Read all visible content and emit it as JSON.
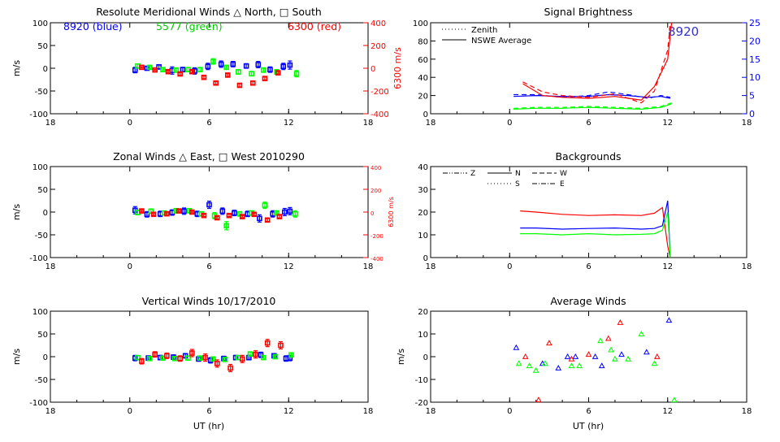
{
  "figure": {
    "panel_titles": {
      "meridional": "Resolute Meridional Winds △ North, □ South",
      "zonal": "Zonal Winds △ East, □ West 2010290",
      "vertical": "Vertical Winds 10/17/2010",
      "brightness": "Signal Brightness",
      "backgrounds": "Backgrounds",
      "average": "Average Winds"
    },
    "wavelength_labels": {
      "blue": "8920 (blue)",
      "green": "5577 (green)",
      "red": "6300 (red)"
    },
    "xlabel": "UT (hr)"
  },
  "chart_data": [
    {
      "id": "meridional",
      "type": "scatter",
      "title": "Resolute Meridional Winds △ North, □ South",
      "ylabel": "m/s",
      "ylabel_right": "6300 m/s",
      "x_ticks": [
        "18",
        "0",
        "6",
        "12",
        "18"
      ],
      "ylim": [
        -100,
        100
      ],
      "y_ticks": [
        -100,
        -50,
        0,
        50,
        100
      ],
      "ylim_right": [
        -400,
        400
      ],
      "y_ticks_right": [
        -400,
        -200,
        0,
        200,
        400
      ],
      "series": [
        {
          "color": "#0000ff",
          "x": [
            0.4,
            1.3,
            2.2,
            3.2,
            4.0,
            4.9,
            5.9,
            6.9,
            7.8,
            8.8,
            9.7,
            10.6,
            11.6,
            12.1
          ],
          "y": [
            -4,
            0,
            3,
            -5,
            -3,
            -6,
            4,
            9,
            9,
            5,
            8,
            -3,
            4,
            7
          ],
          "err": [
            6,
            4,
            5,
            8,
            5,
            7,
            7,
            7,
            6,
            5,
            7,
            6,
            7,
            9
          ]
        },
        {
          "color": "#00ff00",
          "x": [
            0.6,
            1.5,
            2.5,
            3.5,
            4.4,
            5.3,
            6.3,
            7.3,
            8.2,
            9.2,
            10.1,
            11.1,
            12.6
          ],
          "y": [
            5,
            2,
            -3,
            -4,
            -3,
            -3,
            15,
            2,
            -8,
            -12,
            -4,
            -8,
            -12
          ],
          "err": [
            4,
            3,
            4,
            5,
            4,
            4,
            6,
            4,
            5,
            5,
            5,
            5,
            7
          ]
        },
        {
          "color": "#ff0000",
          "x": [
            0.9,
            1.9,
            2.9,
            3.8,
            4.7,
            5.6,
            6.5,
            7.4,
            8.3,
            9.3,
            10.2,
            11.2
          ],
          "y": [
            8,
            -15,
            -30,
            -50,
            -30,
            -80,
            -130,
            -60,
            -150,
            -130,
            -90,
            -40
          ],
          "err": [
            6,
            6,
            8,
            10,
            10,
            12,
            12,
            12,
            14,
            14,
            12,
            12
          ]
        }
      ]
    },
    {
      "id": "zonal",
      "type": "scatter",
      "title": "Zonal Winds △ East, □ West 2010290",
      "ylabel": "m/s",
      "ylabel_right": "6300 m/s",
      "x_ticks": [
        "18",
        "0",
        "6",
        "12",
        "18"
      ],
      "ylim": [
        -100,
        100
      ],
      "y_ticks": [
        -100,
        -50,
        0,
        50,
        100
      ],
      "ylim_right": [
        -400,
        400
      ],
      "y_ticks_right": [
        -400,
        -200,
        0,
        200,
        400
      ],
      "series": [
        {
          "color": "#0000ff",
          "x": [
            0.4,
            1.3,
            2.3,
            3.2,
            4.1,
            5.1,
            6.0,
            7.0,
            7.9,
            8.9,
            9.8,
            10.8,
            11.7,
            12.1
          ],
          "y": [
            4,
            -5,
            -4,
            -1,
            2,
            -4,
            16,
            2,
            -2,
            -4,
            -14,
            -4,
            0,
            2
          ],
          "err": [
            8,
            6,
            6,
            6,
            7,
            6,
            8,
            7,
            6,
            6,
            8,
            7,
            8,
            8
          ]
        },
        {
          "color": "#00ff00",
          "x": [
            0.6,
            1.6,
            2.6,
            3.5,
            4.5,
            5.4,
            6.4,
            7.3,
            8.3,
            9.2,
            10.2,
            11.1,
            12.5
          ],
          "y": [
            -1,
            2,
            -2,
            3,
            3,
            -4,
            -8,
            -30,
            -4,
            -2,
            15,
            -2,
            -4
          ],
          "err": [
            5,
            5,
            4,
            5,
            5,
            5,
            7,
            9,
            5,
            5,
            7,
            5,
            7
          ]
        },
        {
          "color": "#ff0000",
          "x": [
            0.9,
            1.8,
            2.8,
            3.7,
            4.7,
            5.6,
            6.6,
            7.5,
            8.5,
            9.4,
            10.4,
            11.3
          ],
          "y": [
            10,
            -20,
            -15,
            10,
            0,
            -30,
            -50,
            -30,
            -40,
            -20,
            -70,
            -40
          ],
          "err": [
            8,
            8,
            8,
            8,
            8,
            10,
            10,
            10,
            10,
            10,
            12,
            12
          ]
        }
      ]
    },
    {
      "id": "vertical",
      "type": "scatter",
      "title": "Vertical Winds 10/17/2010",
      "ylabel": "m/s",
      "xlabel": "UT (hr)",
      "x_ticks": [
        "18",
        "0",
        "6",
        "12",
        "18"
      ],
      "ylim": [
        -100,
        100
      ],
      "y_ticks": [
        -100,
        -50,
        0,
        50,
        100
      ],
      "series": [
        {
          "color": "#0000ff",
          "x": [
            0.4,
            1.4,
            2.3,
            3.3,
            4.2,
            5.2,
            6.1,
            7.1,
            8.0,
            9.0,
            9.9,
            10.9,
            11.8,
            12.1
          ],
          "y": [
            -3,
            -3,
            -2,
            -1,
            2,
            -5,
            -8,
            -4,
            -2,
            -2,
            4,
            2,
            -4,
            -3
          ],
          "err": [
            6,
            5,
            5,
            5,
            5,
            5,
            6,
            5,
            5,
            5,
            6,
            5,
            6,
            6
          ]
        },
        {
          "color": "#00ff00",
          "x": [
            0.6,
            1.5,
            2.5,
            3.4,
            4.4,
            5.3,
            6.3,
            7.2,
            8.2,
            9.1,
            10.1,
            11.0,
            12.2
          ],
          "y": [
            -2,
            -4,
            -3,
            -4,
            -3,
            -3,
            -5,
            -6,
            -2,
            6,
            -2,
            0,
            4
          ],
          "err": [
            4,
            4,
            4,
            4,
            4,
            4,
            4,
            4,
            4,
            4,
            4,
            4,
            4
          ]
        },
        {
          "color": "#ff0000",
          "x": [
            0.9,
            1.9,
            2.8,
            3.8,
            4.7,
            5.7,
            6.6,
            7.6,
            8.5,
            9.5,
            10.4,
            11.4
          ],
          "y": [
            -10,
            5,
            2,
            -4,
            8,
            -2,
            -15,
            -25,
            -5,
            5,
            30,
            25
          ],
          "err": [
            6,
            6,
            6,
            6,
            8,
            8,
            8,
            8,
            8,
            8,
            8,
            8
          ]
        }
      ]
    },
    {
      "id": "brightness",
      "type": "line",
      "title": "Signal Brightness",
      "x_ticks": [
        "18",
        "0",
        "6",
        "12",
        "18"
      ],
      "ylim": [
        0,
        100
      ],
      "y_ticks": [
        0,
        20,
        40,
        60,
        80,
        100
      ],
      "ylim_right": [
        0,
        25
      ],
      "y_ticks_right": [
        0,
        5,
        10,
        15,
        20,
        25
      ],
      "legend": [
        {
          "style": "dotted",
          "label": "Zenith"
        },
        {
          "style": "solid",
          "label": "NSWE Average"
        }
      ],
      "annotation": "8920",
      "series": [
        {
          "color": "#0000ff",
          "style": "solid",
          "x": [
            0.3,
            2,
            4,
            6,
            7.5,
            9,
            10.5,
            11.5,
            12.2
          ],
          "y": [
            19,
            20,
            19,
            19,
            21,
            20,
            18,
            19,
            17
          ]
        },
        {
          "color": "#0000ff",
          "style": "dashed",
          "x": [
            0.3,
            2,
            4,
            6,
            7.5,
            9,
            10.5,
            11.5,
            12.2
          ],
          "y": [
            21,
            21,
            18,
            20,
            24,
            21,
            17,
            20,
            18
          ]
        },
        {
          "color": "#00ff00",
          "style": "solid",
          "x": [
            0.3,
            2,
            4,
            6,
            8,
            10,
            11.5,
            12.3
          ],
          "y": [
            5,
            6,
            6,
            7,
            6,
            5,
            7,
            11
          ]
        },
        {
          "color": "#00ff00",
          "style": "dashed",
          "x": [
            0.3,
            2,
            4,
            6,
            8,
            10,
            11.5,
            12.3
          ],
          "y": [
            6,
            7,
            7,
            8,
            7,
            6,
            8,
            12
          ]
        },
        {
          "color": "#ff0000",
          "style": "solid",
          "x": [
            1,
            2.5,
            4,
            6,
            8,
            10,
            11,
            12,
            12.3
          ],
          "y": [
            33,
            20,
            18,
            17,
            19,
            15,
            30,
            60,
            100
          ]
        },
        {
          "color": "#ff0000",
          "style": "dashed",
          "x": [
            1,
            2.5,
            4,
            6,
            8,
            10,
            11,
            12,
            12.2
          ],
          "y": [
            35,
            24,
            20,
            18,
            22,
            12,
            25,
            70,
            100
          ]
        }
      ]
    },
    {
      "id": "backgrounds",
      "type": "line",
      "title": "Backgrounds",
      "x_ticks": [
        "18",
        "0",
        "6",
        "12",
        "18"
      ],
      "ylim": [
        0,
        40
      ],
      "y_ticks": [
        0,
        10,
        20,
        30,
        40
      ],
      "legend": [
        {
          "style": "dashdotdot",
          "label": "Z"
        },
        {
          "style": "solid",
          "label": "N"
        },
        {
          "style": "dashed",
          "label": "W"
        },
        {
          "style": "dotted",
          "label": "S"
        },
        {
          "style": "dashdot",
          "label": "E"
        }
      ],
      "series": [
        {
          "color": "#ff0000",
          "x": [
            0.8,
            2,
            4,
            6,
            8,
            10,
            11,
            11.6,
            12,
            12.2
          ],
          "y": [
            20.5,
            20,
            19,
            18.5,
            18.8,
            18.5,
            19.5,
            22,
            5,
            0
          ]
        },
        {
          "color": "#0000ff",
          "x": [
            0.8,
            2,
            4,
            6,
            8,
            10,
            11,
            11.6,
            12,
            12.2
          ],
          "y": [
            13,
            13,
            12.5,
            12.8,
            13,
            12.5,
            12.8,
            14,
            25,
            0
          ]
        },
        {
          "color": "#00ff00",
          "x": [
            0.8,
            2,
            4,
            6,
            8,
            10,
            11,
            11.6,
            12,
            12.2
          ],
          "y": [
            10.5,
            10.5,
            10,
            10.5,
            10,
            10.2,
            10.5,
            12,
            20,
            0
          ]
        }
      ]
    },
    {
      "id": "average",
      "type": "scatter",
      "title": "Average Winds",
      "ylabel": "m/s",
      "xlabel": "UT (hr)",
      "x_ticks": [
        "18",
        "0",
        "6",
        "12",
        "18"
      ],
      "ylim": [
        -20,
        20
      ],
      "y_ticks": [
        -20,
        -10,
        0,
        10,
        20
      ],
      "series": [
        {
          "color": "#0000ff",
          "marker": "triangle",
          "x": [
            0.5,
            2.5,
            3.7,
            4.4,
            5.0,
            6.5,
            7.0,
            8.5,
            10.4,
            12.1
          ],
          "y": [
            4,
            -3,
            -5,
            0,
            0,
            0,
            -4,
            1,
            2,
            16
          ]
        },
        {
          "color": "#00ff00",
          "marker": "triangle",
          "x": [
            0.7,
            1.5,
            2.0,
            2.7,
            4.7,
            5.3,
            6.9,
            7.7,
            8.0,
            9.0,
            10.0,
            11.0,
            12.5
          ],
          "y": [
            -3,
            -4,
            -6,
            -3,
            -4,
            -4,
            7,
            3,
            -1,
            -1,
            10,
            -3,
            -19
          ]
        },
        {
          "color": "#ff0000",
          "marker": "triangle",
          "x": [
            1.2,
            2.2,
            3.0,
            4.7,
            6.0,
            7.5,
            8.4,
            11.2
          ],
          "y": [
            0,
            -19,
            6,
            -1,
            1,
            8,
            15,
            0
          ]
        }
      ]
    }
  ]
}
